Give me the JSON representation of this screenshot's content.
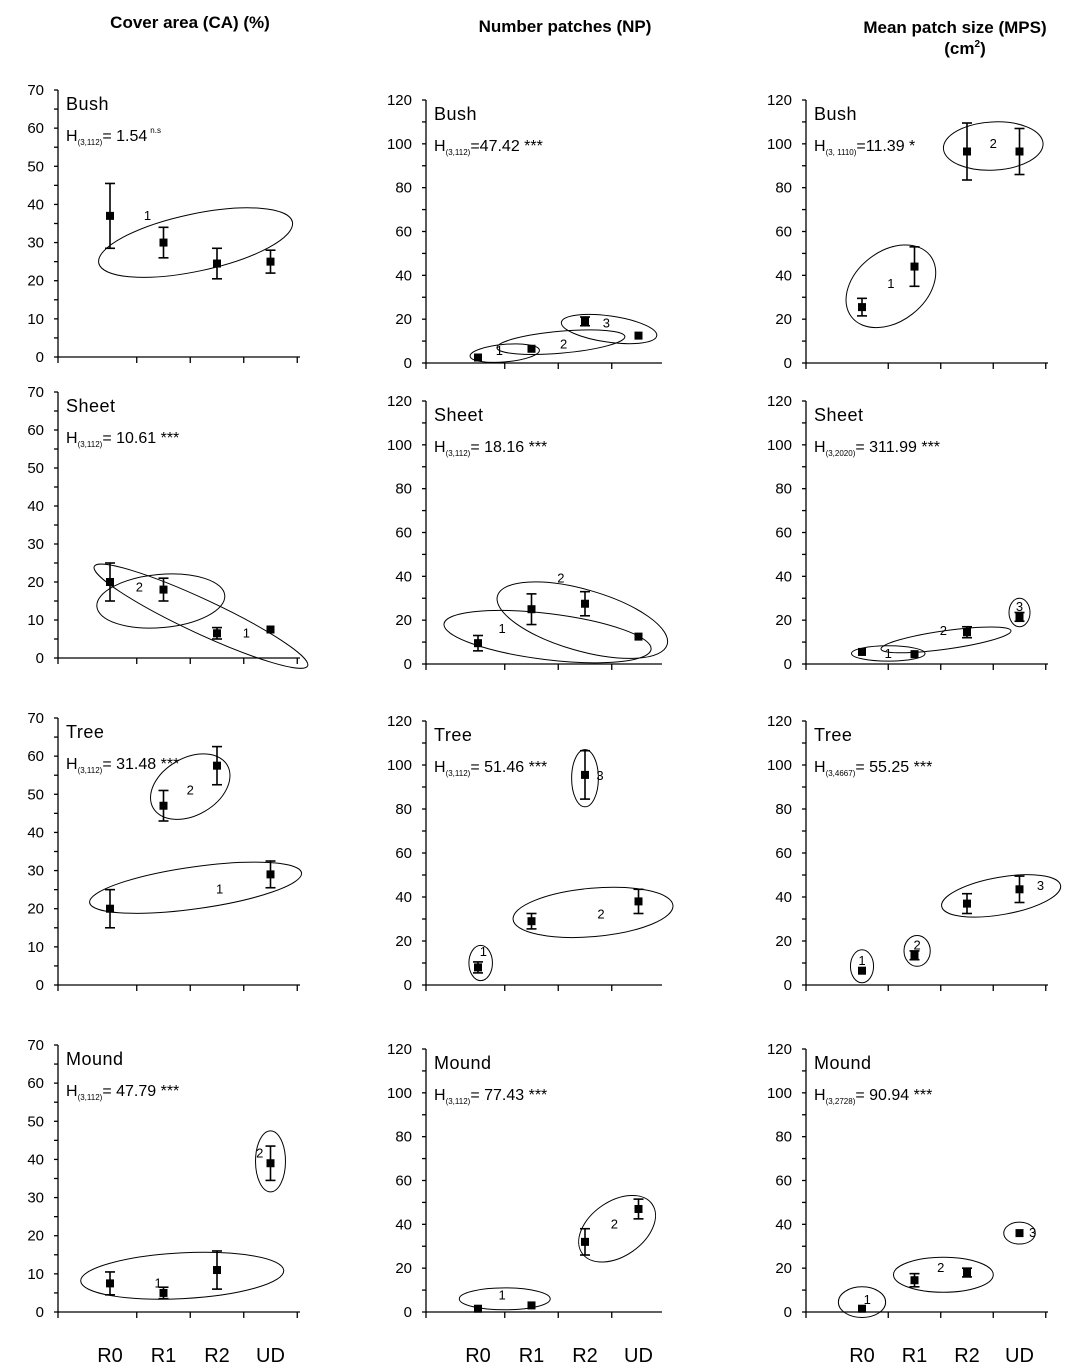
{
  "column_titles": [
    "Cover area (CA) (%)",
    "Number patches (NP)",
    "Mean patch size (MPS)"
  ],
  "mps_unit": {
    "base": "(cm",
    "sup": "2",
    "close": ")"
  },
  "x_categories": [
    "R0",
    "R1",
    "R2",
    "UD"
  ],
  "chart_data": [
    {
      "type": "scatter",
      "title": "Bush",
      "stat": {
        "pre": "H",
        "sub": "(3,112)",
        "eq": "= 1.54",
        "sig": "n.s",
        "sig_style": "sup"
      },
      "categories": [
        "R0",
        "R1",
        "R2",
        "UD"
      ],
      "values": [
        37,
        30,
        24.5,
        25
      ],
      "err": [
        8.5,
        4,
        4,
        3
      ],
      "ylim": [
        0,
        70
      ],
      "yticks": [
        0,
        10,
        20,
        30,
        40,
        50,
        60,
        70
      ],
      "groups": [
        {
          "label": "1",
          "cx": 1.6,
          "cy": 30,
          "rx": 1.85,
          "ry": 7.5,
          "rot": -12,
          "lx": 0.7,
          "ly": 37
        }
      ]
    },
    {
      "type": "scatter",
      "title": "Bush",
      "stat": {
        "pre": "H",
        "sub": "(3,112)",
        "eq": "=47.42",
        "sig": "***",
        "sig_style": "inline"
      },
      "categories": [
        "R0",
        "R1",
        "R2",
        "UD"
      ],
      "values": [
        2.5,
        6.5,
        19,
        12.5
      ],
      "err": [
        0,
        0,
        2,
        0
      ],
      "ylim": [
        0,
        120
      ],
      "yticks": [
        0,
        20,
        40,
        60,
        80,
        100,
        120
      ],
      "groups": [
        {
          "label": "1",
          "cx": 0.5,
          "cy": 4.5,
          "rx": 0.65,
          "ry": 4,
          "rot": -5,
          "lx": 0.4,
          "ly": 5.5
        },
        {
          "label": "2",
          "cx": 1.55,
          "cy": 9.5,
          "rx": 1.2,
          "ry": 5,
          "rot": -5,
          "lx": 1.6,
          "ly": 8.5
        },
        {
          "label": "3",
          "cx": 2.45,
          "cy": 15.5,
          "rx": 0.9,
          "ry": 6,
          "rot": 8,
          "lx": 2.4,
          "ly": 18
        }
      ]
    },
    {
      "type": "scatter",
      "title": "Bush",
      "stat": {
        "pre": "H",
        "sub": "(3, 1110)",
        "eq": "=11.39",
        "sig": "*",
        "sig_style": "inline"
      },
      "categories": [
        "R0",
        "R1",
        "R2",
        "UD"
      ],
      "values": [
        25.5,
        44,
        96.5,
        96.5
      ],
      "err": [
        4,
        9,
        13,
        10.5
      ],
      "ylim": [
        0,
        120
      ],
      "yticks": [
        0,
        20,
        40,
        60,
        80,
        100,
        120
      ],
      "groups": [
        {
          "label": "1",
          "cx": 0.55,
          "cy": 35,
          "rx": 0.95,
          "ry": 16,
          "rot": -38,
          "lx": 0.55,
          "ly": 36
        },
        {
          "label": "2",
          "cx": 2.5,
          "cy": 99,
          "rx": 0.95,
          "ry": 11,
          "rot": -3,
          "lx": 2.5,
          "ly": 100
        }
      ]
    },
    {
      "type": "scatter",
      "title": "Sheet",
      "stat": {
        "pre": "H",
        "sub": "(3,112)",
        "eq": "= 10.61",
        "sig": "***",
        "sig_style": "inline"
      },
      "categories": [
        "R0",
        "R1",
        "R2",
        "UD"
      ],
      "values": [
        20,
        18,
        6.5,
        7.5
      ],
      "err": [
        5,
        3,
        1.5,
        0
      ],
      "ylim": [
        0,
        70
      ],
      "yticks": [
        0,
        10,
        20,
        30,
        40,
        50,
        60,
        70
      ],
      "groups": [
        {
          "label": "2",
          "cx": 0.95,
          "cy": 15,
          "rx": 1.2,
          "ry": 7,
          "rot": -5,
          "lx": 0.55,
          "ly": 18.5
        },
        {
          "label": "1",
          "cx": 1.7,
          "cy": 11,
          "rx": 2.2,
          "ry": 4.5,
          "rot": 25,
          "lx": 2.55,
          "ly": 6.5
        }
      ]
    },
    {
      "type": "scatter",
      "title": "Sheet",
      "stat": {
        "pre": "H",
        "sub": "(3,112)",
        "eq": "= 18.16",
        "sig": "***",
        "sig_style": "inline"
      },
      "categories": [
        "R0",
        "R1",
        "R2",
        "UD"
      ],
      "values": [
        9.5,
        25,
        27.5,
        12.5
      ],
      "err": [
        3.5,
        7,
        5.5,
        0
      ],
      "ylim": [
        0,
        120
      ],
      "yticks": [
        0,
        20,
        40,
        60,
        80,
        100,
        120
      ],
      "groups": [
        {
          "label": "1",
          "cx": 1.3,
          "cy": 12.5,
          "rx": 1.95,
          "ry": 10.5,
          "rot": 7,
          "lx": 0.45,
          "ly": 16
        },
        {
          "label": "2",
          "cx": 1.95,
          "cy": 20,
          "rx": 1.65,
          "ry": 14,
          "rot": 16,
          "lx": 1.55,
          "ly": 39
        }
      ]
    },
    {
      "type": "scatter",
      "title": "Sheet",
      "stat": {
        "pre": "H",
        "sub": "(3,2020)",
        "eq": "= 311.99",
        "sig": "***",
        "sig_style": "inline"
      },
      "categories": [
        "R0",
        "R1",
        "R2",
        "UD"
      ],
      "values": [
        5.5,
        4.5,
        14.5,
        21.5
      ],
      "err": [
        0,
        0,
        2.5,
        2
      ],
      "ylim": [
        0,
        120
      ],
      "yticks": [
        0,
        20,
        40,
        60,
        80,
        100,
        120
      ],
      "groups": [
        {
          "label": "1",
          "cx": 0.5,
          "cy": 4.8,
          "rx": 0.7,
          "ry": 3.5,
          "rot": 0,
          "lx": 0.5,
          "ly": 4.5
        },
        {
          "label": "2",
          "cx": 1.6,
          "cy": 11,
          "rx": 1.25,
          "ry": 4.2,
          "rot": -8,
          "lx": 1.55,
          "ly": 15
        },
        {
          "label": "3",
          "cx": 3.0,
          "cy": 23.5,
          "rx": 0.2,
          "ry": 6.5,
          "rot": 0,
          "lx": 3.0,
          "ly": 26
        }
      ]
    },
    {
      "type": "scatter",
      "title": "Tree",
      "stat": {
        "pre": "H",
        "sub": "(3,112)",
        "eq": "= 31.48",
        "sig": "***",
        "sig_style": "inline"
      },
      "categories": [
        "R0",
        "R1",
        "R2",
        "UD"
      ],
      "values": [
        20,
        47,
        57.5,
        29
      ],
      "err": [
        5,
        4,
        5,
        3.5
      ],
      "ylim": [
        0,
        70
      ],
      "yticks": [
        0,
        10,
        20,
        30,
        40,
        50,
        60,
        70
      ],
      "groups": [
        {
          "label": "2",
          "cx": 1.5,
          "cy": 52,
          "rx": 0.8,
          "ry": 7.5,
          "rot": -30,
          "lx": 1.5,
          "ly": 51
        },
        {
          "label": "1",
          "cx": 1.6,
          "cy": 25.5,
          "rx": 2.0,
          "ry": 5.5,
          "rot": -8,
          "lx": 2.05,
          "ly": 25
        }
      ]
    },
    {
      "type": "scatter",
      "title": "Tree",
      "stat": {
        "pre": "H",
        "sub": "(3,112)",
        "eq": "= 51.46",
        "sig": "***",
        "sig_style": "inline"
      },
      "categories": [
        "R0",
        "R1",
        "R2",
        "UD"
      ],
      "values": [
        8,
        29,
        95.5,
        38
      ],
      "err": [
        2.5,
        3.5,
        11,
        5.5
      ],
      "ylim": [
        0,
        120
      ],
      "yticks": [
        0,
        20,
        40,
        60,
        80,
        100,
        120
      ],
      "groups": [
        {
          "label": "1",
          "cx": 0.05,
          "cy": 10,
          "rx": 0.22,
          "ry": 8,
          "rot": 0,
          "lx": 0.1,
          "ly": 15
        },
        {
          "label": "2",
          "cx": 2.15,
          "cy": 33,
          "rx": 1.5,
          "ry": 11,
          "rot": -5,
          "lx": 2.3,
          "ly": 32
        },
        {
          "label": "3",
          "cx": 2.0,
          "cy": 94,
          "rx": 0.25,
          "ry": 13,
          "rot": 0,
          "lx": 2.28,
          "ly": 95
        }
      ]
    },
    {
      "type": "scatter",
      "title": "Tree",
      "stat": {
        "pre": "H",
        "sub": "(3,4667)",
        "eq": "= 55.25",
        "sig": "***",
        "sig_style": "inline"
      },
      "categories": [
        "R0",
        "R1",
        "R2",
        "UD"
      ],
      "values": [
        6.5,
        13.5,
        37,
        43.5
      ],
      "err": [
        0,
        2,
        4.5,
        6
      ],
      "ylim": [
        0,
        120
      ],
      "yticks": [
        0,
        20,
        40,
        60,
        80,
        100,
        120
      ],
      "groups": [
        {
          "label": "1",
          "cx": 0.0,
          "cy": 8.5,
          "rx": 0.22,
          "ry": 7.5,
          "rot": 0,
          "lx": 0.0,
          "ly": 11
        },
        {
          "label": "2",
          "cx": 1.05,
          "cy": 15.5,
          "rx": 0.25,
          "ry": 7,
          "rot": 0,
          "lx": 1.05,
          "ly": 18
        },
        {
          "label": "3",
          "cx": 2.65,
          "cy": 40.5,
          "rx": 1.15,
          "ry": 8.5,
          "rot": -10,
          "lx": 3.4,
          "ly": 45
        }
      ]
    },
    {
      "type": "scatter",
      "title": "Mound",
      "stat": {
        "pre": "H",
        "sub": "(3,112)",
        "eq": "= 47.79",
        "sig": "***",
        "sig_style": "inline"
      },
      "categories": [
        "R0",
        "R1",
        "R2",
        "UD"
      ],
      "values": [
        7.5,
        5,
        11,
        39
      ],
      "err": [
        3,
        1.5,
        5,
        4.5
      ],
      "ylim": [
        0,
        70
      ],
      "yticks": [
        0,
        10,
        20,
        30,
        40,
        50,
        60,
        70
      ],
      "groups": [
        {
          "label": "1",
          "cx": 1.35,
          "cy": 9.5,
          "rx": 1.9,
          "ry": 6,
          "rot": -3,
          "lx": 0.9,
          "ly": 7.5
        },
        {
          "label": "2",
          "cx": 3.0,
          "cy": 39.5,
          "rx": 0.28,
          "ry": 8,
          "rot": 0,
          "lx": 2.8,
          "ly": 41.5
        }
      ]
    },
    {
      "type": "scatter",
      "title": "Mound",
      "stat": {
        "pre": "H",
        "sub": "(3,112)",
        "eq": "= 77.43",
        "sig": "***",
        "sig_style": "inline"
      },
      "categories": [
        "R0",
        "R1",
        "R2",
        "UD"
      ],
      "values": [
        1.5,
        3,
        32,
        47
      ],
      "err": [
        0,
        0,
        6,
        4.5
      ],
      "ylim": [
        0,
        120
      ],
      "yticks": [
        0,
        20,
        40,
        60,
        80,
        100,
        120
      ],
      "groups": [
        {
          "label": "1",
          "cx": 0.5,
          "cy": 6,
          "rx": 0.85,
          "ry": 5,
          "rot": 0,
          "lx": 0.45,
          "ly": 7.5
        },
        {
          "label": "2",
          "cx": 2.6,
          "cy": 38,
          "rx": 0.8,
          "ry": 12.5,
          "rot": -35,
          "lx": 2.55,
          "ly": 40
        }
      ]
    },
    {
      "type": "scatter",
      "title": "Mound",
      "stat": {
        "pre": "H",
        "sub": "(3,2728)",
        "eq": "= 90.94",
        "sig": "***",
        "sig_style": "inline"
      },
      "categories": [
        "R0",
        "R1",
        "R2",
        "UD"
      ],
      "values": [
        1.5,
        14.5,
        18,
        36
      ],
      "err": [
        0,
        3,
        2,
        0
      ],
      "ylim": [
        0,
        120
      ],
      "yticks": [
        0,
        20,
        40,
        60,
        80,
        100,
        120
      ],
      "groups": [
        {
          "label": "1",
          "cx": 0.0,
          "cy": 4.5,
          "rx": 0.45,
          "ry": 7,
          "rot": 0,
          "lx": 0.1,
          "ly": 5.5
        },
        {
          "label": "2",
          "cx": 1.55,
          "cy": 17,
          "rx": 0.95,
          "ry": 8,
          "rot": 0,
          "lx": 1.5,
          "ly": 20
        },
        {
          "label": "3",
          "cx": 3.0,
          "cy": 36,
          "rx": 0.3,
          "ry": 5,
          "rot": 0,
          "lx": 3.25,
          "ly": 36
        }
      ]
    }
  ]
}
